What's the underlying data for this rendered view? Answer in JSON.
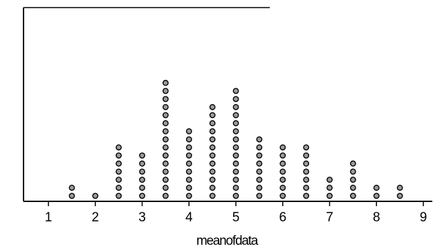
{
  "chart_data": {
    "type": "scatter",
    "subtype": "dot-plot",
    "title": "",
    "xlabel": "meanofdata",
    "ylabel": "",
    "xlim": [
      0.5,
      9.3
    ],
    "x_ticks": [
      1,
      2,
      3,
      4,
      5,
      6,
      7,
      8,
      9
    ],
    "x_tick_labels": [
      "1",
      "2",
      "3",
      "4",
      "5",
      "6",
      "7",
      "8",
      "9"
    ],
    "grid": false,
    "series": [
      {
        "x": [
          1.5,
          2,
          2.5,
          3,
          3.5,
          4,
          4.5,
          5,
          5.5,
          6,
          6.5,
          7,
          7.5,
          8,
          8.5
        ],
        "counts": [
          2,
          1,
          7,
          6,
          15,
          9,
          12,
          14,
          8,
          7,
          7,
          3,
          5,
          2,
          2
        ]
      }
    ],
    "colors": {
      "dot_fill": "#9a9a9a",
      "dot_stroke": "#000000",
      "axis": "#000000"
    }
  }
}
